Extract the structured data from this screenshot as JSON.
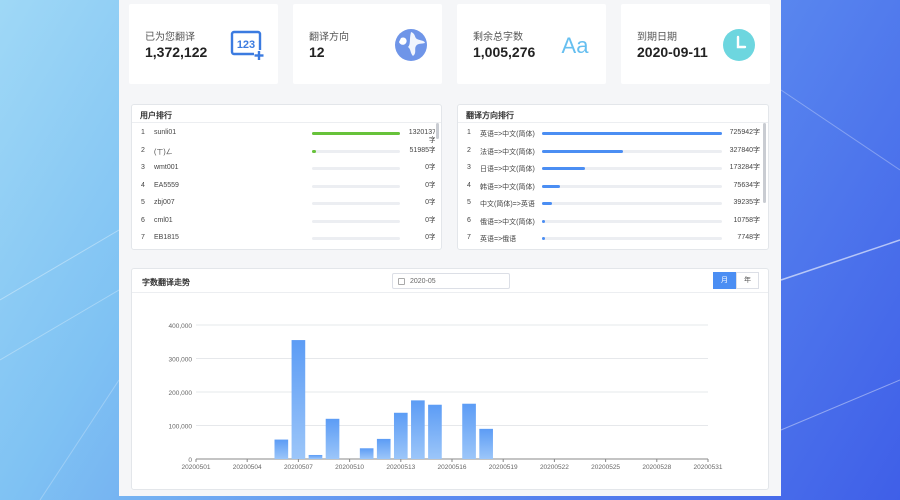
{
  "stats": [
    {
      "label": "已为您翻译",
      "value": "1,372,122",
      "icon": "numbers-123-icon"
    },
    {
      "label": "翻译方向",
      "value": "12",
      "icon": "globe-icon"
    },
    {
      "label": "剩余总字数",
      "value": "1,005,276",
      "icon": "font-aa-icon"
    },
    {
      "label": "到期日期",
      "value": "2020-09-11",
      "icon": "clock-icon"
    }
  ],
  "user_rank": {
    "title": "用户排行",
    "rows": [
      {
        "idx": "1",
        "name": "sunli01",
        "value": "1320137字",
        "fraction": 1.0
      },
      {
        "idx": "2",
        "name": "(ㄒ)ㄥ",
        "value": "51985字",
        "fraction": 0.04
      },
      {
        "idx": "3",
        "name": "wmt001",
        "value": "0字",
        "fraction": 0
      },
      {
        "idx": "4",
        "name": "EA5559",
        "value": "0字",
        "fraction": 0
      },
      {
        "idx": "5",
        "name": "zbj007",
        "value": "0字",
        "fraction": 0
      },
      {
        "idx": "6",
        "name": "cml01",
        "value": "0字",
        "fraction": 0
      },
      {
        "idx": "7",
        "name": "EB1815",
        "value": "0字",
        "fraction": 0
      }
    ]
  },
  "direction_rank": {
    "title": "翻译方向排行",
    "rows": [
      {
        "idx": "1",
        "name": "英语=>中文(简体)",
        "value": "725942字",
        "fraction": 1.0
      },
      {
        "idx": "2",
        "name": "法语=>中文(简体)",
        "value": "327840字",
        "fraction": 0.45
      },
      {
        "idx": "3",
        "name": "日语=>中文(简体)",
        "value": "173284字",
        "fraction": 0.24
      },
      {
        "idx": "4",
        "name": "韩语=>中文(简体)",
        "value": "75634字",
        "fraction": 0.1
      },
      {
        "idx": "5",
        "name": "中文(简体)=>英语",
        "value": "39235字",
        "fraction": 0.054
      },
      {
        "idx": "6",
        "name": "俄语=>中文(简体)",
        "value": "10758字",
        "fraction": 0.015
      },
      {
        "idx": "7",
        "name": "英语=>俄语",
        "value": "7748字",
        "fraction": 0.011
      }
    ]
  },
  "chart_section": {
    "title": "字数翻译走势",
    "date_value": "2020-05",
    "toggle_month": "月",
    "toggle_year": "年"
  },
  "chart_data": {
    "type": "bar",
    "title": "",
    "xlabel": "",
    "ylabel": "",
    "ylim": [
      0,
      400000
    ],
    "yticks": [
      "0",
      "100,000",
      "200,000",
      "300,000",
      "400,000"
    ],
    "x_tick_labels": [
      "20200501",
      "20200504",
      "20200507",
      "20200510",
      "20200513",
      "20200516",
      "20200519",
      "20200522",
      "20200525",
      "20200528",
      "20200531"
    ],
    "categories": [
      "20200501",
      "20200502",
      "20200503",
      "20200504",
      "20200505",
      "20200506",
      "20200507",
      "20200508",
      "20200509",
      "20200510",
      "20200511",
      "20200512",
      "20200513",
      "20200514",
      "20200515",
      "20200516",
      "20200517",
      "20200518",
      "20200519",
      "20200520",
      "20200521",
      "20200522",
      "20200523",
      "20200524",
      "20200525",
      "20200526",
      "20200527",
      "20200528",
      "20200529",
      "20200530",
      "20200531"
    ],
    "values": [
      0,
      0,
      0,
      0,
      0,
      58000,
      355000,
      12000,
      120000,
      0,
      32000,
      60000,
      138000,
      175000,
      162000,
      0,
      165000,
      90000,
      0,
      0,
      0,
      0,
      0,
      0,
      0,
      0,
      0,
      0,
      0,
      0,
      0
    ],
    "grid": true,
    "bar_color": "#6aa6f6"
  }
}
